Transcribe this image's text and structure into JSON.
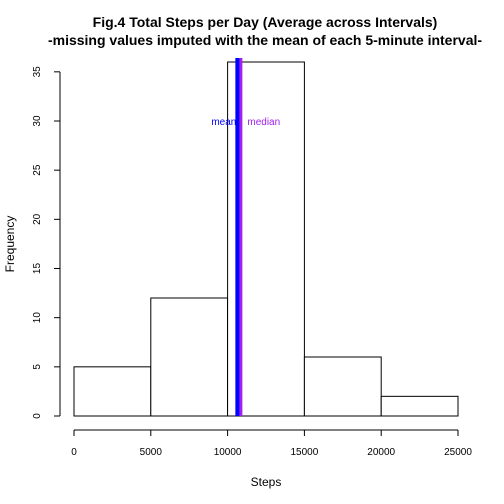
{
  "chart_data": {
    "type": "bar",
    "title": "Fig.4 Total Steps per Day (Average across Intervals)",
    "subtitle": "-missing values imputed with the mean of each 5-minute interval-",
    "xlabel": "Steps",
    "ylabel": "Frequency",
    "bins": [
      {
        "from": 0,
        "to": 5000,
        "count": 5
      },
      {
        "from": 5000,
        "to": 10000,
        "count": 12
      },
      {
        "from": 10000,
        "to": 15000,
        "count": 36
      },
      {
        "from": 15000,
        "to": 20000,
        "count": 6
      },
      {
        "from": 20000,
        "to": 25000,
        "count": 2
      }
    ],
    "xlim": [
      0,
      25000
    ],
    "ylim": [
      0,
      36
    ],
    "x_ticks": [
      0,
      5000,
      10000,
      15000,
      20000,
      25000
    ],
    "y_ticks": [
      0,
      5,
      10,
      15,
      20,
      25,
      30,
      35
    ],
    "grid": false,
    "bar_fill": "#ffffff",
    "bar_stroke": "#000000",
    "vlines": [
      {
        "label": "mean",
        "value": 10766,
        "color": "#0000ff"
      },
      {
        "label": "median",
        "value": 10766,
        "color": "#a020f0"
      }
    ]
  }
}
